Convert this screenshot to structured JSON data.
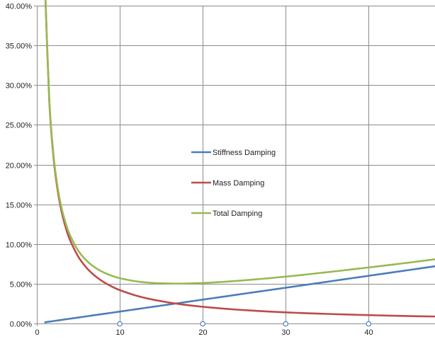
{
  "chart_data": {
    "type": "line",
    "title": "",
    "xlabel": "",
    "ylabel": "",
    "xlim": [
      0,
      48
    ],
    "ylim": [
      0,
      0.4
    ],
    "x_ticks": [
      0,
      10,
      20,
      30,
      40
    ],
    "x_tick_labels": [
      "0",
      "10",
      "20",
      "30",
      "40"
    ],
    "y_ticks": [
      0,
      0.05,
      0.1,
      0.15,
      0.2,
      0.25,
      0.3,
      0.35,
      0.4
    ],
    "y_tick_labels": [
      "0.00%",
      "5.00%",
      "10.00%",
      "15.00%",
      "20.00%",
      "25.00%",
      "30.00%",
      "35.00%",
      "40.00%"
    ],
    "grid": true,
    "legend_position": "center",
    "x": [
      1,
      1.5,
      2,
      2.5,
      3,
      3.5,
      4,
      5,
      6,
      7,
      8,
      9,
      10,
      12,
      14,
      16,
      17,
      18,
      20,
      22,
      24,
      26,
      28,
      30,
      32,
      34,
      36,
      38,
      40,
      42,
      44,
      46,
      48
    ],
    "series": [
      {
        "name": "Stiffness Damping",
        "color": "#4a7ebb",
        "values": [
          0.0015,
          0.0023,
          0.003,
          0.0038,
          0.0045,
          0.0053,
          0.006,
          0.0075,
          0.009,
          0.0105,
          0.012,
          0.0135,
          0.015,
          0.018,
          0.021,
          0.024,
          0.0255,
          0.027,
          0.03,
          0.033,
          0.036,
          0.039,
          0.042,
          0.045,
          0.048,
          0.051,
          0.054,
          0.057,
          0.06,
          0.063,
          0.066,
          0.069,
          0.072
        ]
      },
      {
        "name": "Mass Damping",
        "color": "#be4b48",
        "values": [
          0.42,
          0.28,
          0.21,
          0.168,
          0.14,
          0.12,
          0.105,
          0.084,
          0.07,
          0.06,
          0.0525,
          0.0467,
          0.042,
          0.035,
          0.03,
          0.0263,
          0.0247,
          0.0233,
          0.021,
          0.0191,
          0.0175,
          0.0162,
          0.015,
          0.014,
          0.0131,
          0.0124,
          0.0117,
          0.0111,
          0.0105,
          0.01,
          0.0095,
          0.0091,
          0.0088
        ]
      },
      {
        "name": "Total Damping",
        "color": "#98b954",
        "values": [
          0.4215,
          0.2823,
          0.213,
          0.1718,
          0.1445,
          0.1253,
          0.111,
          0.0915,
          0.079,
          0.0705,
          0.0645,
          0.0602,
          0.057,
          0.053,
          0.051,
          0.0503,
          0.0502,
          0.0503,
          0.051,
          0.0521,
          0.0535,
          0.0552,
          0.057,
          0.059,
          0.0611,
          0.0634,
          0.0657,
          0.0681,
          0.0705,
          0.073,
          0.0755,
          0.0781,
          0.0808
        ]
      }
    ],
    "x_axis_markers": [
      10,
      20,
      30,
      40
    ],
    "x_axis_marker_color": "#4a7ebb"
  }
}
